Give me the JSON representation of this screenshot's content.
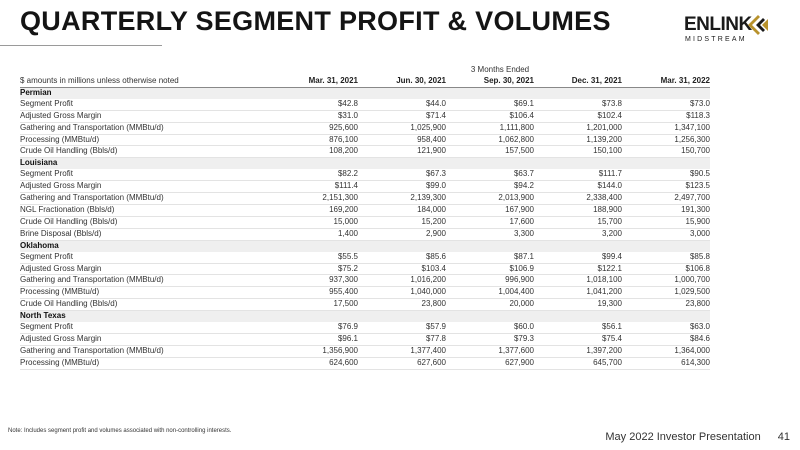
{
  "header": {
    "title": "QUARTERLY SEGMENT PROFIT & VOLUMES",
    "logo": {
      "word": "ENLINK",
      "sub": "MIDSTREAM",
      "accent": "#b8922c",
      "icon": "enlink-arrow-mark-icon"
    }
  },
  "table": {
    "period_label": "3 Months Ended",
    "unit_note": "$ amounts in millions unless otherwise noted",
    "columns": [
      "Mar. 31, 2021",
      "Jun. 30, 2021",
      "Sep. 30, 2021",
      "Dec. 31, 2021",
      "Mar. 31, 2022"
    ],
    "sections": [
      {
        "name": "Permian",
        "rows": [
          {
            "label": "Segment Profit",
            "values": [
              "$42.8",
              "$44.0",
              "$69.1",
              "$73.8",
              "$73.0"
            ]
          },
          {
            "label": "Adjusted Gross Margin",
            "values": [
              "$31.0",
              "$71.4",
              "$106.4",
              "$102.4",
              "$118.3"
            ]
          },
          {
            "label": "Gathering and Transportation (MMBtu/d)",
            "values": [
              "925,600",
              "1,025,900",
              "1,111,800",
              "1,201,000",
              "1,347,100"
            ]
          },
          {
            "label": "Processing (MMBtu/d)",
            "values": [
              "876,100",
              "958,400",
              "1,062,800",
              "1,139,200",
              "1,256,300"
            ]
          },
          {
            "label": "Crude Oil Handling (Bbls/d)",
            "values": [
              "108,200",
              "121,900",
              "157,500",
              "150,100",
              "150,700"
            ]
          }
        ]
      },
      {
        "name": "Louisiana",
        "rows": [
          {
            "label": "Segment Profit",
            "values": [
              "$82.2",
              "$67.3",
              "$63.7",
              "$111.7",
              "$90.5"
            ]
          },
          {
            "label": "Adjusted Gross Margin",
            "values": [
              "$111.4",
              "$99.0",
              "$94.2",
              "$144.0",
              "$123.5"
            ]
          },
          {
            "label": "Gathering and Transportation (MMBtu/d)",
            "values": [
              "2,151,300",
              "2,139,300",
              "2,013,900",
              "2,338,400",
              "2,497,700"
            ]
          },
          {
            "label": "NGL Fractionation (Bbls/d)",
            "values": [
              "169,200",
              "184,000",
              "167,900",
              "188,900",
              "191,300"
            ]
          },
          {
            "label": "Crude Oil Handling (Bbls/d)",
            "values": [
              "15,000",
              "15,200",
              "17,600",
              "15,700",
              "15,900"
            ]
          },
          {
            "label": "Brine Disposal (Bbls/d)",
            "values": [
              "1,400",
              "2,900",
              "3,300",
              "3,200",
              "3,000"
            ]
          }
        ]
      },
      {
        "name": "Oklahoma",
        "rows": [
          {
            "label": "Segment Profit",
            "values": [
              "$55.5",
              "$85.6",
              "$87.1",
              "$99.4",
              "$85.8"
            ]
          },
          {
            "label": "Adjusted Gross Margin",
            "values": [
              "$75.2",
              "$103.4",
              "$106.9",
              "$122.1",
              "$106.8"
            ]
          },
          {
            "label": "Gathering and Transportation (MMBtu/d)",
            "values": [
              "937,300",
              "1,016,200",
              "996,900",
              "1,018,100",
              "1,000,700"
            ]
          },
          {
            "label": "Processing (MMBtu/d)",
            "values": [
              "955,400",
              "1,040,000",
              "1,004,400",
              "1,041,200",
              "1,029,500"
            ]
          },
          {
            "label": "Crude Oil Handling (Bbls/d)",
            "values": [
              "17,500",
              "23,800",
              "20,000",
              "19,300",
              "23,800"
            ]
          }
        ]
      },
      {
        "name": "North Texas",
        "rows": [
          {
            "label": "Segment Profit",
            "values": [
              "$76.9",
              "$57.9",
              "$60.0",
              "$56.1",
              "$63.0"
            ]
          },
          {
            "label": "Adjusted Gross Margin",
            "values": [
              "$96.1",
              "$77.8",
              "$79.3",
              "$75.4",
              "$84.6"
            ]
          },
          {
            "label": "Gathering and Transportation (MMBtu/d)",
            "values": [
              "1,356,900",
              "1,377,400",
              "1,377,600",
              "1,397,200",
              "1,364,000"
            ]
          },
          {
            "label": "Processing (MMBtu/d)",
            "values": [
              "624,600",
              "627,600",
              "627,900",
              "645,700",
              "614,300"
            ]
          }
        ]
      }
    ]
  },
  "note": "Note: Includes segment profit and volumes associated with non-controlling interests.",
  "footer": {
    "presentation": "May 2022 Investor Presentation",
    "page": "41"
  }
}
